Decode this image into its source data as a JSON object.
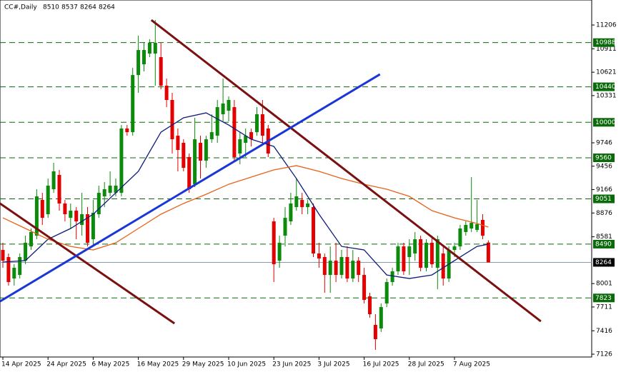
{
  "chart_data": {
    "type": "candlestick",
    "title": "CC#,Daily",
    "categories": [
      "14 Apr 2025",
      null,
      null,
      null,
      null,
      null,
      null,
      null,
      "24 Apr 2025",
      null,
      null,
      null,
      null,
      null,
      null,
      null,
      "6 May 2025",
      null,
      null,
      null,
      null,
      null,
      null,
      null,
      "16 May 2025",
      null,
      null,
      null,
      null,
      null,
      null,
      null,
      "29 May 2025",
      null,
      null,
      null,
      null,
      null,
      null,
      null,
      "10 Jun 2025",
      null,
      null,
      null,
      null,
      null,
      null,
      null,
      "23 Jun 2025",
      null,
      null,
      null,
      null,
      null,
      null,
      null,
      "3 Jul 2025",
      null,
      null,
      null,
      null,
      null,
      null,
      null,
      "16 Jul 2025",
      null,
      null,
      null,
      null,
      null,
      null,
      null,
      "28 Jul 2025",
      null,
      null,
      null,
      null,
      null,
      null,
      null,
      "7 Aug 2025",
      null,
      null,
      null,
      null,
      null,
      null
    ],
    "open": [
      8418,
      8330,
      8064,
      8108,
      8285,
      8462,
      8595,
      9038,
      8861,
      9171,
      9348,
      8994,
      8816,
      8905,
      8728,
      8861,
      8551,
      8861,
      9082,
      9126,
      9126,
      9126,
      9923,
      9878,
      10586,
      10719,
      10852,
      10852,
      10808,
      10454,
      10277,
      9834,
      9746,
      9569,
      9233,
      9746,
      9525,
      9790,
      9834,
      10100,
      10144,
      10188,
      9613,
      9746,
      9878,
      9878,
      10100,
      9923,
      8772,
      8285,
      8595,
      8772,
      8949,
      9038,
      8949,
      8949,
      8374,
      8330,
      8108,
      8285,
      8108,
      8330,
      8064,
      8285,
      8108,
      7843,
      7489,
      7445,
      7755,
      8020,
      8153,
      8462,
      8330,
      8374,
      8551,
      8197,
      8507,
      8197,
      8374,
      8064,
      8418,
      8462,
      8640,
      8684,
      8666,
      8790,
      8510
    ],
    "high": [
      8507,
      8374,
      8241,
      8374,
      8595,
      8684,
      9171,
      9126,
      9303,
      9498,
      9410,
      9038,
      8994,
      8949,
      9126,
      8949,
      9038,
      9215,
      9259,
      9392,
      9303,
      9967,
      9967,
      10675,
      11073,
      10985,
      11029,
      11268,
      10985,
      10542,
      10365,
      9923,
      9790,
      9613,
      10056,
      9834,
      9834,
      10100,
      10277,
      10542,
      10321,
      10277,
      9878,
      9923,
      9923,
      10188,
      10277,
      9967,
      8816,
      8595,
      8949,
      9126,
      9303,
      9126,
      9038,
      8994,
      8507,
      8374,
      8462,
      8507,
      8418,
      8462,
      8418,
      8330,
      8197,
      7887,
      7622,
      7755,
      8064,
      8197,
      8507,
      8507,
      8551,
      8640,
      8595,
      8551,
      8595,
      8595,
      8462,
      8462,
      8507,
      8728,
      8772,
      9321,
      9038,
      8861,
      8537
    ],
    "low": [
      8197,
      7976,
      7976,
      8064,
      8241,
      8418,
      8551,
      8728,
      8816,
      9126,
      8905,
      8772,
      8684,
      8551,
      8595,
      8462,
      8462,
      8816,
      8949,
      9082,
      9082,
      9082,
      9834,
      9834,
      10365,
      10631,
      10808,
      10454,
      10410,
      10188,
      9613,
      9392,
      9392,
      9126,
      9197,
      9303,
      9436,
      9746,
      9746,
      10011,
      10011,
      9525,
      9480,
      9569,
      9701,
      9834,
      9746,
      9569,
      8020,
      8197,
      8462,
      8728,
      8905,
      8861,
      8861,
      8330,
      8197,
      7887,
      7887,
      8020,
      8064,
      8020,
      8020,
      8020,
      7755,
      7578,
      7179,
      7401,
      7710,
      7976,
      8108,
      8108,
      8108,
      8285,
      8153,
      8153,
      8197,
      7931,
      7976,
      8020,
      8330,
      8418,
      8595,
      8640,
      8640,
      8551,
      8264
    ],
    "close": [
      8285,
      8020,
      8197,
      8330,
      8507,
      8640,
      9082,
      8816,
      9215,
      9392,
      8994,
      8861,
      8905,
      8772,
      8861,
      8507,
      8879,
      9126,
      9171,
      9215,
      9215,
      9923,
      9878,
      10586,
      10896,
      10896,
      10985,
      10985,
      10454,
      10277,
      9790,
      9657,
      9436,
      9171,
      9790,
      9525,
      9790,
      9878,
      10188,
      10233,
      10277,
      9569,
      9790,
      9834,
      9790,
      10100,
      9834,
      9613,
      8241,
      8507,
      8816,
      8994,
      9082,
      8949,
      8994,
      8374,
      8312,
      8108,
      8285,
      8108,
      8330,
      8064,
      8285,
      8108,
      7799,
      7622,
      7312,
      7710,
      8020,
      8153,
      8462,
      8153,
      8462,
      8551,
      8197,
      8507,
      8241,
      8551,
      8064,
      8418,
      8462,
      8684,
      8728,
      8754,
      8737,
      8595,
      8264
    ],
    "up_color": "#0b8a0b",
    "down_color": "#e20000",
    "series": [
      {
        "color": "#0d1a7a",
        "x": [
          0,
          4,
          8,
          12,
          16,
          20,
          24,
          28,
          32,
          36,
          40,
          44,
          48,
          52,
          56,
          60,
          64,
          68,
          72,
          76,
          80,
          84,
          86
        ],
        "values": [
          8268,
          8286,
          8551,
          8684,
          8861,
          9126,
          9392,
          9878,
          10056,
          10117,
          9967,
          9790,
          9701,
          9303,
          8861,
          8462,
          8418,
          8108,
          8064,
          8108,
          8286,
          8462,
          8489
        ]
      },
      {
        "color": "#e8621a",
        "x": [
          0,
          4,
          8,
          12,
          16,
          20,
          24,
          28,
          32,
          36,
          40,
          44,
          48,
          52,
          56,
          60,
          64,
          68,
          72,
          76,
          80,
          84,
          86
        ],
        "values": [
          8816,
          8684,
          8551,
          8462,
          8418,
          8507,
          8684,
          8861,
          8994,
          9108,
          9232,
          9321,
          9410,
          9463,
          9392,
          9303,
          9232,
          9171,
          9082,
          8905,
          8816,
          8746,
          8702
        ]
      }
    ],
    "trendlines": [
      {
        "color": "#7a1010",
        "x": [
          -0.5,
          30.4
        ],
        "values": [
          8994,
          7507
        ]
      },
      {
        "color": "#7a1010",
        "x": [
          26.3,
          95.3
        ],
        "values": [
          11268,
          7533
        ]
      },
      {
        "color": "#1a35d8",
        "x": [
          -0.5,
          66.8
        ],
        "values": [
          7781,
          10595
        ]
      }
    ],
    "levels": [
      10988,
      10440,
      10000,
      9560,
      9051,
      8490,
      7823
    ],
    "level_color": "#0a6a0a",
    "current_price": 8264,
    "ylim": [
      7091,
      11516
    ],
    "yticks": [
      11206,
      10911,
      10621,
      10331,
      9746,
      9456,
      9166,
      8876,
      8581,
      8001,
      7711,
      7416,
      7126
    ]
  }
}
